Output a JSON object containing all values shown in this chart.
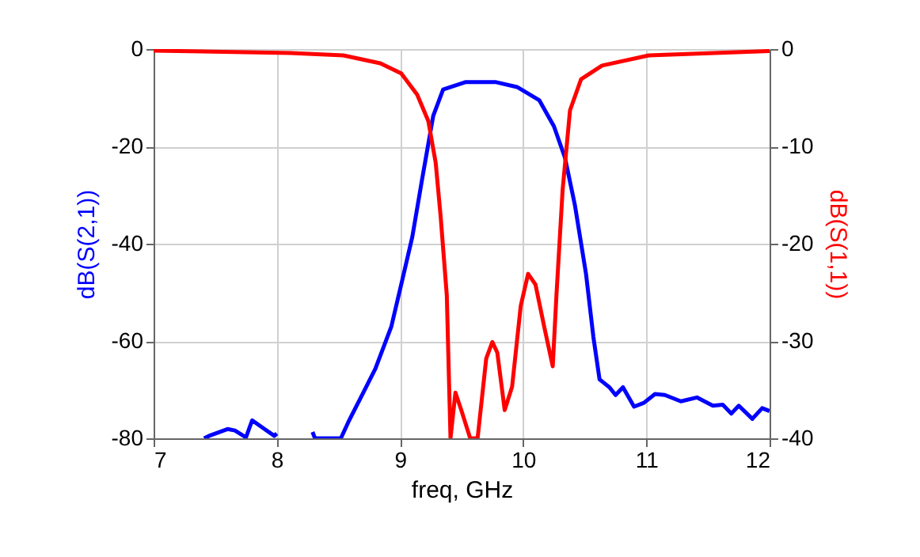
{
  "chart_data": {
    "type": "line",
    "xlabel": "freq, GHz",
    "ylabel": "dB(S(2,1))",
    "y2label": "dB(S(1,1))",
    "xlim": [
      7,
      12
    ],
    "xticks": [
      7,
      8,
      9,
      10,
      11,
      12
    ],
    "ylim": [
      -80,
      0
    ],
    "yticks": [
      -80,
      -60,
      -40,
      -20,
      0
    ],
    "y2lim": [
      -40,
      0
    ],
    "y2ticks": [
      -40,
      -30,
      -20,
      -10,
      0
    ],
    "grid": true,
    "line_style": "solid",
    "series": [
      {
        "color": "#0000ff",
        "x": [
          7.41,
          7.45,
          7.6,
          7.66,
          7.75,
          7.8,
          7.9,
          7.98,
          8.0,
          8.26,
          8.29,
          8.31,
          8.52,
          8.58,
          8.67,
          8.8,
          8.93,
          9.01,
          9.1,
          9.18,
          9.27,
          9.35,
          9.53,
          9.78,
          9.95,
          10.13,
          10.25,
          10.34,
          10.42,
          10.51,
          10.57,
          10.62,
          10.7,
          10.75,
          10.81,
          10.9,
          10.98,
          11.07,
          11.15,
          11.28,
          11.41,
          11.54,
          11.62,
          11.69,
          11.75,
          11.86,
          11.94,
          12.0
        ],
        "values": [
          -80,
          -79.5,
          -78.1,
          -78.4,
          -79.8,
          -76.3,
          -78.1,
          -79.5,
          -79,
          null,
          -78.7,
          -80,
          -80,
          -76.7,
          -72.2,
          -65.7,
          -57,
          -48.4,
          -38.6,
          -26.7,
          -13.7,
          -8.3,
          -6.8,
          -6.8,
          -7.8,
          -10.5,
          -15.9,
          -22.4,
          -32.1,
          -46.2,
          -59.2,
          -67.9,
          -69.5,
          -71.1,
          -69.5,
          -73.5,
          -72.7,
          -70.9,
          -71.1,
          -72.4,
          -71.6,
          -73.3,
          -73.1,
          -74.9,
          -73.3,
          -76,
          -73.8,
          -74.4
        ]
      },
      {
        "color": "#ff0000",
        "axis": "y2",
        "x": [
          7.0,
          8.11,
          8.54,
          8.84,
          9.01,
          9.14,
          9.23,
          9.29,
          9.33,
          9.38,
          9.41,
          9.45,
          9.5,
          9.57,
          9.63,
          9.7,
          9.75,
          9.79,
          9.85,
          9.91,
          9.98,
          10.04,
          10.1,
          10.17,
          10.24,
          10.27,
          10.32,
          10.38,
          10.47,
          10.64,
          11.02,
          12.0
        ],
        "values": [
          -0.16,
          -0.4,
          -0.65,
          -1.46,
          -2.5,
          -4.7,
          -7.4,
          -11.7,
          -17.2,
          -25.3,
          -40,
          -35.3,
          -37.2,
          -40,
          -40,
          -31.8,
          -30.1,
          -31.2,
          -37.1,
          -34.7,
          -26.4,
          -23.1,
          -24.2,
          -28.5,
          -32.6,
          -25.3,
          -14.5,
          -6.3,
          -3.1,
          -1.7,
          -0.65,
          -0.2
        ]
      }
    ]
  }
}
